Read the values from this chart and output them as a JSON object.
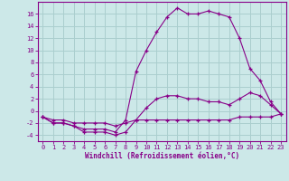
{
  "xlabel": "Windchill (Refroidissement éolien,°C)",
  "background_color": "#cce8e8",
  "line_color": "#880088",
  "grid_color": "#aacece",
  "hours": [
    0,
    1,
    2,
    3,
    4,
    5,
    6,
    7,
    8,
    9,
    10,
    11,
    12,
    13,
    14,
    15,
    16,
    17,
    18,
    19,
    20,
    21,
    22,
    23
  ],
  "temp": [
    -1,
    -2,
    -2,
    -2.5,
    -3,
    -3,
    -3,
    -3.5,
    -1.5,
    6.5,
    10,
    13,
    15.5,
    17,
    16,
    16,
    16.5,
    16,
    15.5,
    12,
    7,
    5,
    1.5,
    -0.5
  ],
  "windchill": [
    -1,
    -2,
    -2,
    -2.5,
    -3.5,
    -3.5,
    -3.5,
    -4,
    -3.5,
    -1.5,
    0.5,
    2,
    2.5,
    2.5,
    2,
    2,
    1.5,
    1.5,
    1,
    2,
    3,
    2.5,
    1,
    -0.5
  ],
  "flat_line": [
    -1,
    -1.5,
    -1.5,
    -2,
    -2,
    -2,
    -2,
    -2.5,
    -2,
    -1.5,
    -1.5,
    -1.5,
    -1.5,
    -1.5,
    -1.5,
    -1.5,
    -1.5,
    -1.5,
    -1.5,
    -1,
    -1,
    -1,
    -1,
    -0.5
  ],
  "ylim": [
    -5,
    18
  ],
  "xlim": [
    0,
    23
  ],
  "yticks": [
    -4,
    -2,
    0,
    2,
    4,
    6,
    8,
    10,
    12,
    14,
    16
  ],
  "xticks": [
    0,
    1,
    2,
    3,
    4,
    5,
    6,
    7,
    8,
    9,
    10,
    11,
    12,
    13,
    14,
    15,
    16,
    17,
    18,
    19,
    20,
    21,
    22,
    23
  ]
}
